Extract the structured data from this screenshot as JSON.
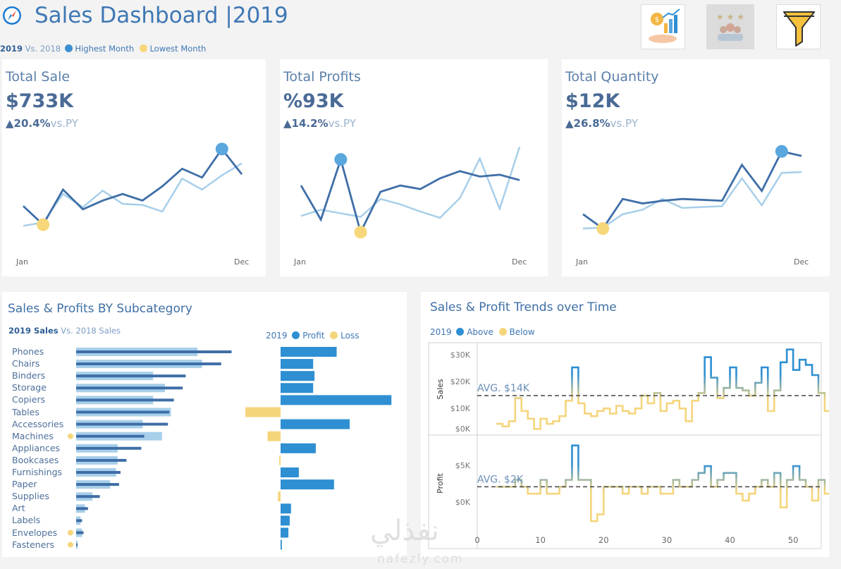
{
  "header": {
    "title": "Sales Dashboard |",
    "year": "2019",
    "legend_year": "2019",
    "legend_vs": "Vs. 2018",
    "legend_high": "Highest Month",
    "legend_low": "Lowest Month",
    "icons": [
      "growth-chart-icon",
      "team-rating-icon",
      "filter-funnel-icon"
    ]
  },
  "colors": {
    "current": "#3e6ea7",
    "previous": "#a8cfea",
    "highlight_high": "#5aa7de",
    "highlight_low": "#f7d77a",
    "profit_bar": "#2e8fd2",
    "loss_bar": "#f5d57c",
    "sales_prev_bar": "#a8cfea"
  },
  "kpis": [
    {
      "title": "Total Sale",
      "value": "$733K",
      "arrow": "▲",
      "delta": "20.4%",
      "vs": "vs.PY",
      "x_start": "Jan",
      "x_end": "Dec",
      "current": [
        42,
        25,
        57,
        39,
        47,
        53,
        47,
        60,
        76,
        68,
        94,
        71
      ],
      "previous": [
        24,
        27,
        53,
        41,
        56,
        44,
        43,
        37,
        67,
        57,
        70,
        81
      ],
      "high_index": 10,
      "low_index": 1,
      "ylim": [
        10,
        100
      ]
    },
    {
      "title": "Total Profits",
      "value": "%93K",
      "arrow": "▲",
      "delta": "14.2%",
      "vs": "vs.PY",
      "x_start": "Jan",
      "x_end": "Dec",
      "current": [
        62,
        24,
        91,
        10,
        55,
        62,
        58,
        70,
        78,
        72,
        74,
        68
      ],
      "previous": [
        28,
        35,
        31,
        27,
        47,
        41,
        33,
        26,
        48,
        92,
        36,
        105
      ],
      "high_index": 2,
      "low_index": 3,
      "ylim": [
        0,
        110
      ]
    },
    {
      "title": "Total Quantity",
      "value": "$12K",
      "arrow": "▲",
      "delta": "26.8%",
      "vs": "vs.PY",
      "x_start": "Jan",
      "x_end": "Dec",
      "current": [
        30,
        14,
        47,
        42,
        45,
        47,
        46,
        45,
        85,
        56,
        100,
        95
      ],
      "previous": [
        14,
        15,
        30,
        35,
        47,
        37,
        38,
        39,
        70,
        40,
        76,
        77
      ],
      "high_index": 10,
      "low_index": 1,
      "ylim": [
        0,
        110
      ]
    }
  ],
  "subcategory": {
    "title": "Sales & Profits BY Subcategory",
    "legend_sales_2019": "2019 Sales",
    "legend_sales_vs": "Vs. 2018 Sales",
    "legend_profit_year": "2019",
    "legend_profit": "Profit",
    "legend_loss": "Loss",
    "categories": [
      "Phones",
      "Chairs",
      "Binders",
      "Storage",
      "Copiers",
      "Tables",
      "Accessories",
      "Machines",
      "Appliances",
      "Bookcases",
      "Furnishings",
      "Paper",
      "Supplies",
      "Art",
      "Labels",
      "Envelopes",
      "Fasteners"
    ],
    "sales_2019": [
      105,
      98,
      74,
      72,
      66,
      63,
      62,
      46,
      44,
      34,
      30,
      29,
      16,
      8,
      4,
      5,
      1
    ],
    "sales_2018": [
      82,
      85,
      52,
      60,
      52,
      64,
      45,
      58,
      28,
      28,
      27,
      23,
      11,
      6,
      3,
      4,
      1
    ],
    "profit": [
      43,
      25,
      26,
      25,
      85,
      -27,
      53,
      -10,
      27,
      -1,
      14,
      41,
      -2,
      8,
      7,
      6,
      1
    ],
    "loss_marker": [
      false,
      false,
      false,
      false,
      false,
      false,
      false,
      true,
      false,
      false,
      false,
      false,
      false,
      false,
      false,
      true,
      true
    ]
  },
  "trends": {
    "title": "Sales & Profit Trends over Time",
    "legend_year": "2019",
    "legend_above": "Above",
    "legend_below": "Below",
    "sales": {
      "ylabel": "Sales",
      "ticks": [
        "$30K",
        "$20K",
        "$10K",
        "$0K"
      ],
      "avg_label": "AVG. $14K",
      "avg": 14,
      "ylim": [
        0,
        33
      ],
      "values": [
        3,
        2,
        4,
        13,
        8,
        5,
        1,
        5,
        3,
        4,
        6,
        12,
        25,
        11,
        7,
        6,
        8,
        9,
        7,
        10,
        8,
        7,
        9,
        14,
        11,
        15,
        8,
        11,
        12,
        9,
        4,
        12,
        15,
        29,
        21,
        13,
        17,
        25,
        17,
        16,
        14,
        19,
        25,
        8,
        16,
        27,
        32,
        24,
        28,
        26,
        22,
        15,
        8,
        3
      ],
      "x_ticks": [
        "0",
        "10",
        "20",
        "30",
        "40",
        "50"
      ],
      "x_range": [
        0,
        53
      ]
    },
    "profit": {
      "ylabel": "Profit",
      "ticks": [
        "$5K",
        "$0K"
      ],
      "avg_label": "AVG. $2K",
      "avg": 2,
      "ylim": [
        -4,
        9
      ],
      "values": [
        2,
        2,
        2,
        3,
        2,
        1,
        1,
        3,
        1,
        1,
        2,
        3,
        8,
        3,
        3,
        -3,
        -2,
        2,
        2,
        2,
        1,
        2,
        2,
        1,
        2,
        2,
        1,
        1,
        3,
        2,
        2,
        3,
        4,
        5,
        2,
        3,
        4,
        4,
        1,
        0,
        1,
        2,
        3,
        2,
        4,
        -1,
        3,
        5,
        3,
        2,
        0,
        3,
        1,
        4
      ]
    }
  },
  "watermark": {
    "arabic": "نفذلي",
    "latin": "nafezly.com"
  }
}
